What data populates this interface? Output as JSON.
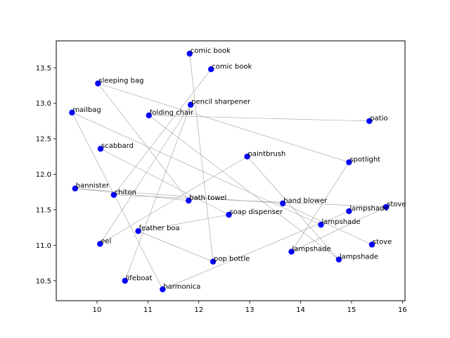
{
  "chart_data": {
    "type": "scatter",
    "title": "",
    "xlabel": "",
    "ylabel": "",
    "xlim": [
      9.2,
      16.05
    ],
    "ylim": [
      10.22,
      13.88
    ],
    "xticks": [
      10,
      11,
      12,
      13,
      14,
      15,
      16
    ],
    "yticks": [
      10.5,
      11.0,
      11.5,
      12.0,
      12.5,
      13.0,
      13.5
    ],
    "xtick_labels": [
      "10",
      "11",
      "12",
      "13",
      "14",
      "15",
      "16"
    ],
    "ytick_labels": [
      "10.5",
      "11.0",
      "11.5",
      "12.0",
      "12.5",
      "13.0",
      "13.5"
    ],
    "grid": false,
    "marker_color": "#0000ff",
    "edge_color": "#a0a0a0",
    "points": [
      {
        "label": "comic book",
        "x": 11.82,
        "y": 13.7
      },
      {
        "label": "comic book",
        "x": 12.24,
        "y": 13.48
      },
      {
        "label": "sleeping bag",
        "x": 10.02,
        "y": 13.28
      },
      {
        "label": "pencil sharpener",
        "x": 11.84,
        "y": 12.98
      },
      {
        "label": "mailbag",
        "x": 9.51,
        "y": 12.87
      },
      {
        "label": "folding chair",
        "x": 11.02,
        "y": 12.83
      },
      {
        "label": "patio",
        "x": 15.35,
        "y": 12.75
      },
      {
        "label": "scabbard",
        "x": 10.07,
        "y": 12.36
      },
      {
        "label": "paintbrush",
        "x": 12.95,
        "y": 12.25
      },
      {
        "label": "spotlight",
        "x": 14.95,
        "y": 12.17
      },
      {
        "label": "bannister",
        "x": 9.57,
        "y": 11.8
      },
      {
        "label": "chiton",
        "x": 10.33,
        "y": 11.71
      },
      {
        "label": "bath towel",
        "x": 11.8,
        "y": 11.63
      },
      {
        "label": "hand blower",
        "x": 13.65,
        "y": 11.59
      },
      {
        "label": "stove",
        "x": 15.68,
        "y": 11.54
      },
      {
        "label": "lampshade",
        "x": 14.95,
        "y": 11.48
      },
      {
        "label": "soap dispenser",
        "x": 12.59,
        "y": 11.43
      },
      {
        "label": "lampshade",
        "x": 14.4,
        "y": 11.29
      },
      {
        "label": "feather boa",
        "x": 10.81,
        "y": 11.2
      },
      {
        "label": "eel",
        "x": 10.06,
        "y": 11.02
      },
      {
        "label": "stove",
        "x": 15.4,
        "y": 11.01
      },
      {
        "label": "lampshade",
        "x": 13.82,
        "y": 10.91
      },
      {
        "label": "lampshade",
        "x": 14.75,
        "y": 10.8
      },
      {
        "label": "pop bottle",
        "x": 12.28,
        "y": 10.77
      },
      {
        "label": "lifeboat",
        "x": 10.55,
        "y": 10.5
      },
      {
        "label": "harmonica",
        "x": 11.29,
        "y": 10.38
      }
    ],
    "edges": [
      [
        0,
        23
      ],
      [
        1,
        11
      ],
      [
        2,
        12
      ],
      [
        2,
        9
      ],
      [
        3,
        19
      ],
      [
        3,
        24
      ],
      [
        4,
        17
      ],
      [
        4,
        25
      ],
      [
        5,
        6
      ],
      [
        5,
        22
      ],
      [
        7,
        16
      ],
      [
        10,
        12
      ],
      [
        10,
        13
      ],
      [
        13,
        20
      ],
      [
        8,
        19
      ],
      [
        8,
        22
      ],
      [
        14,
        21
      ],
      [
        15,
        25
      ],
      [
        16,
        18
      ],
      [
        18,
        23
      ],
      [
        11,
        14
      ],
      [
        9,
        21
      ]
    ]
  }
}
